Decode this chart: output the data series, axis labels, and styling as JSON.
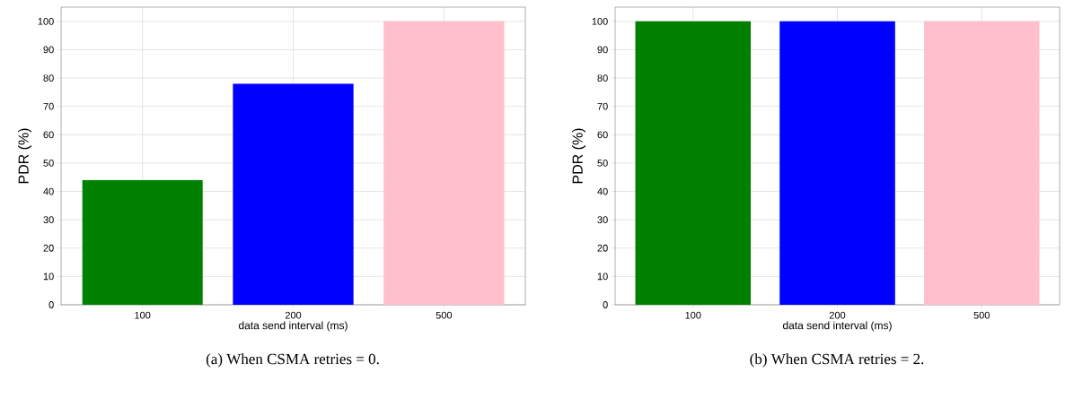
{
  "chart_data": [
    {
      "type": "bar",
      "categories": [
        "100",
        "200",
        "500"
      ],
      "values": [
        44,
        78,
        100
      ],
      "colors": [
        "#008000",
        "#0000ff",
        "#ffc0cb"
      ],
      "xlabel": "data send interval (ms)",
      "ylabel": "PDR (%)",
      "ylim": [
        0,
        105
      ],
      "yticks": [
        0,
        10,
        20,
        30,
        40,
        50,
        60,
        70,
        80,
        90,
        100
      ],
      "grid": true,
      "annotations": [
        "(a) When CSMA retries = 0."
      ]
    },
    {
      "type": "bar",
      "categories": [
        "100",
        "200",
        "500"
      ],
      "values": [
        100,
        100,
        100
      ],
      "colors": [
        "#008000",
        "#0000ff",
        "#ffc0cb"
      ],
      "xlabel": "data send interval (ms)",
      "ylabel": "PDR (%)",
      "ylim": [
        0,
        105
      ],
      "yticks": [
        0,
        10,
        20,
        30,
        40,
        50,
        60,
        70,
        80,
        90,
        100
      ],
      "grid": true,
      "annotations": [
        "(b) When CSMA retries = 2."
      ]
    }
  ]
}
